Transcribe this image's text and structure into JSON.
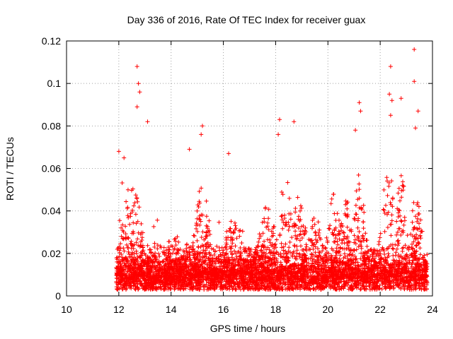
{
  "chart_data": {
    "type": "scatter",
    "title": "Day 336 of 2016, Rate Of TEC Index for receiver guax",
    "xlabel": "GPS time / hours",
    "ylabel": "ROTI / TECUs",
    "xlim": [
      10,
      24
    ],
    "ylim": [
      0,
      0.12
    ],
    "xticks": [
      10,
      12,
      14,
      16,
      18,
      20,
      22,
      24
    ],
    "yticks": [
      0,
      0.02,
      0.04,
      0.06,
      0.08,
      0.1,
      0.12
    ],
    "xtick_labels": [
      "10",
      "12",
      "14",
      "16",
      "18",
      "20",
      "22",
      "24"
    ],
    "ytick_labels": [
      "0",
      "0.02",
      "0.04",
      "0.06",
      "0.08",
      "0.1",
      "0.12"
    ],
    "grid": true,
    "marker": "+",
    "color": "#ff0000",
    "series": [
      {
        "name": "ROTI",
        "generated_points": {
          "x_range": [
            11.9,
            23.8
          ],
          "y_floor": 0.003,
          "baseline_median": 0.011,
          "count": 5200
        },
        "peaks": [
          {
            "x": 12.7,
            "y": 0.108
          },
          {
            "x": 12.75,
            "y": 0.1
          },
          {
            "x": 12.8,
            "y": 0.096
          },
          {
            "x": 12.7,
            "y": 0.089
          },
          {
            "x": 13.1,
            "y": 0.082
          },
          {
            "x": 12.0,
            "y": 0.068
          },
          {
            "x": 12.2,
            "y": 0.065
          },
          {
            "x": 15.2,
            "y": 0.08
          },
          {
            "x": 15.15,
            "y": 0.076
          },
          {
            "x": 14.7,
            "y": 0.069
          },
          {
            "x": 16.2,
            "y": 0.067
          },
          {
            "x": 18.15,
            "y": 0.083
          },
          {
            "x": 18.7,
            "y": 0.082
          },
          {
            "x": 18.1,
            "y": 0.076
          },
          {
            "x": 21.2,
            "y": 0.091
          },
          {
            "x": 21.25,
            "y": 0.087
          },
          {
            "x": 21.05,
            "y": 0.078
          },
          {
            "x": 22.4,
            "y": 0.108
          },
          {
            "x": 22.35,
            "y": 0.095
          },
          {
            "x": 22.45,
            "y": 0.092
          },
          {
            "x": 22.8,
            "y": 0.093
          },
          {
            "x": 22.4,
            "y": 0.085
          },
          {
            "x": 23.3,
            "y": 0.116
          },
          {
            "x": 23.3,
            "y": 0.101
          },
          {
            "x": 23.45,
            "y": 0.087
          },
          {
            "x": 23.35,
            "y": 0.079
          }
        ]
      }
    ]
  }
}
